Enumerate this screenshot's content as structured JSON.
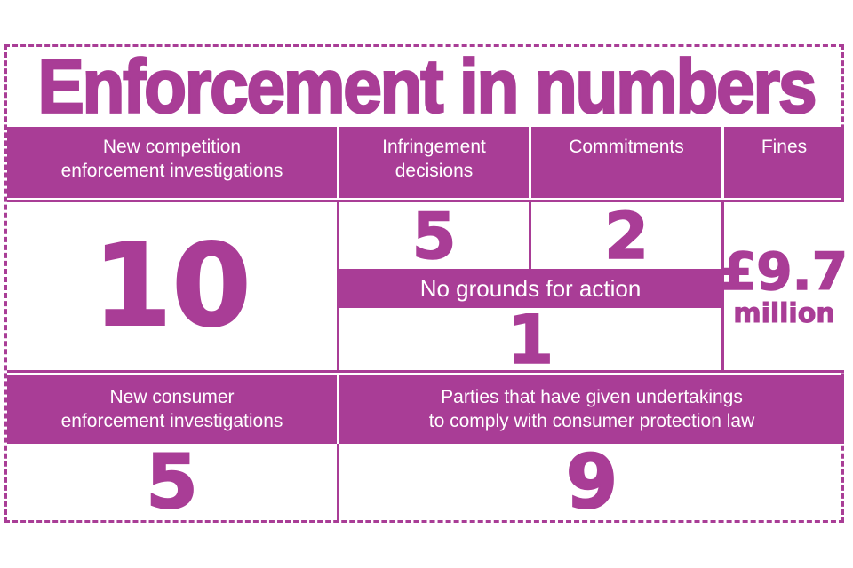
{
  "accent_color": "#a93d96",
  "background_color": "#ffffff",
  "infographic": {
    "title": "Enforcement in numbers",
    "top_headers": {
      "competition": "New competition\nenforcement investigations",
      "infringement": "Infringement\ndecisions",
      "commitments": "Commitments",
      "fines": "Fines"
    },
    "values": {
      "competition_investigations": "10",
      "infringement_decisions": "5",
      "commitments": "2",
      "no_grounds": "1",
      "fines_amount": "£9.7",
      "fines_unit": "million",
      "consumer_investigations": "5",
      "undertakings_parties": "9"
    },
    "banner": {
      "no_grounds_label": "No grounds for action"
    },
    "bottom_headers": {
      "consumer": "New consumer\nenforcement investigations",
      "undertakings": "Parties that have given undertakings\nto comply with consumer protection law"
    }
  },
  "chart_data": {
    "type": "table",
    "title": "Enforcement in numbers",
    "cells": [
      {
        "label": "New competition enforcement investigations",
        "value": 10
      },
      {
        "label": "Infringement decisions",
        "value": 5
      },
      {
        "label": "Commitments",
        "value": 2
      },
      {
        "label": "No grounds for action",
        "value": 1
      },
      {
        "label": "Fines",
        "value": "£9.7 million"
      },
      {
        "label": "New consumer enforcement investigations",
        "value": 5
      },
      {
        "label": "Parties that have given undertakings to comply with consumer protection law",
        "value": 9
      }
    ],
    "layout_hints": {
      "style": "infographic table, magenta header bands with white text, white value cells with magenta numerals, dashed magenta outer border"
    }
  }
}
